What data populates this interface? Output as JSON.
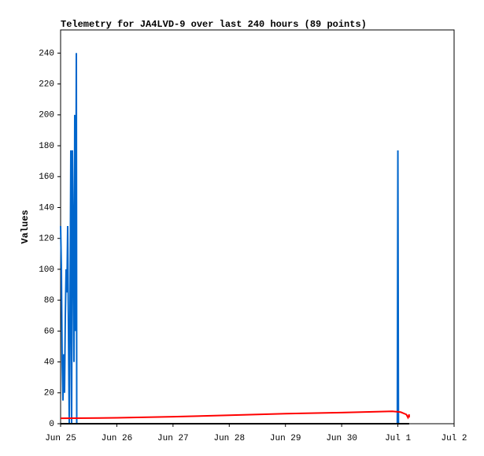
{
  "chart_data": {
    "type": "line",
    "title": "Telemetry for JA4LVD-9 over last 240 hours (89 points)",
    "y_label": "Values",
    "xlim": [
      0,
      7
    ],
    "xticks": [
      {
        "value": 0,
        "label": "Jun 25"
      },
      {
        "value": 1,
        "label": "Jun 26"
      },
      {
        "value": 2,
        "label": "Jun 27"
      },
      {
        "value": 3,
        "label": "Jun 28"
      },
      {
        "value": 4,
        "label": "Jun 29"
      },
      {
        "value": 5,
        "label": "Jun 30"
      },
      {
        "value": 6,
        "label": "Jul 1"
      },
      {
        "value": 7,
        "label": "Jul 2"
      }
    ],
    "ylim": [
      0,
      255
    ],
    "yticks": [
      0,
      20,
      40,
      60,
      80,
      100,
      120,
      140,
      160,
      180,
      200,
      220,
      240
    ],
    "grid": false,
    "series": [
      {
        "color": "#0066cc",
        "x": [
          0,
          0.014,
          0.028,
          0.042,
          0.056,
          0.07,
          0.084,
          0.098,
          0.112,
          0.126,
          0.14,
          0.154,
          0.168,
          0.182,
          0.196,
          0.21,
          0.224,
          0.238,
          0.252,
          0.266,
          0.28,
          0.287,
          5.99,
          6.0,
          6.01
        ],
        "values": [
          128,
          100,
          40,
          15,
          45,
          20,
          70,
          100,
          85,
          128,
          60,
          0,
          75,
          177,
          0,
          177,
          120,
          40,
          200,
          60,
          240,
          0,
          0,
          177,
          0
        ]
      },
      {
        "color": "#ff0000",
        "x": [
          0,
          1,
          2,
          3,
          4,
          5,
          5.9,
          6.05,
          6.15,
          6.18,
          6.2,
          6.2
        ],
        "values": [
          3.5,
          3.8,
          4.5,
          5.5,
          6.5,
          7.2,
          8,
          7.5,
          6,
          4,
          6,
          4
        ]
      },
      {
        "color": "#000000",
        "x": [
          0,
          6.2
        ],
        "values": [
          0,
          0
        ]
      }
    ]
  }
}
